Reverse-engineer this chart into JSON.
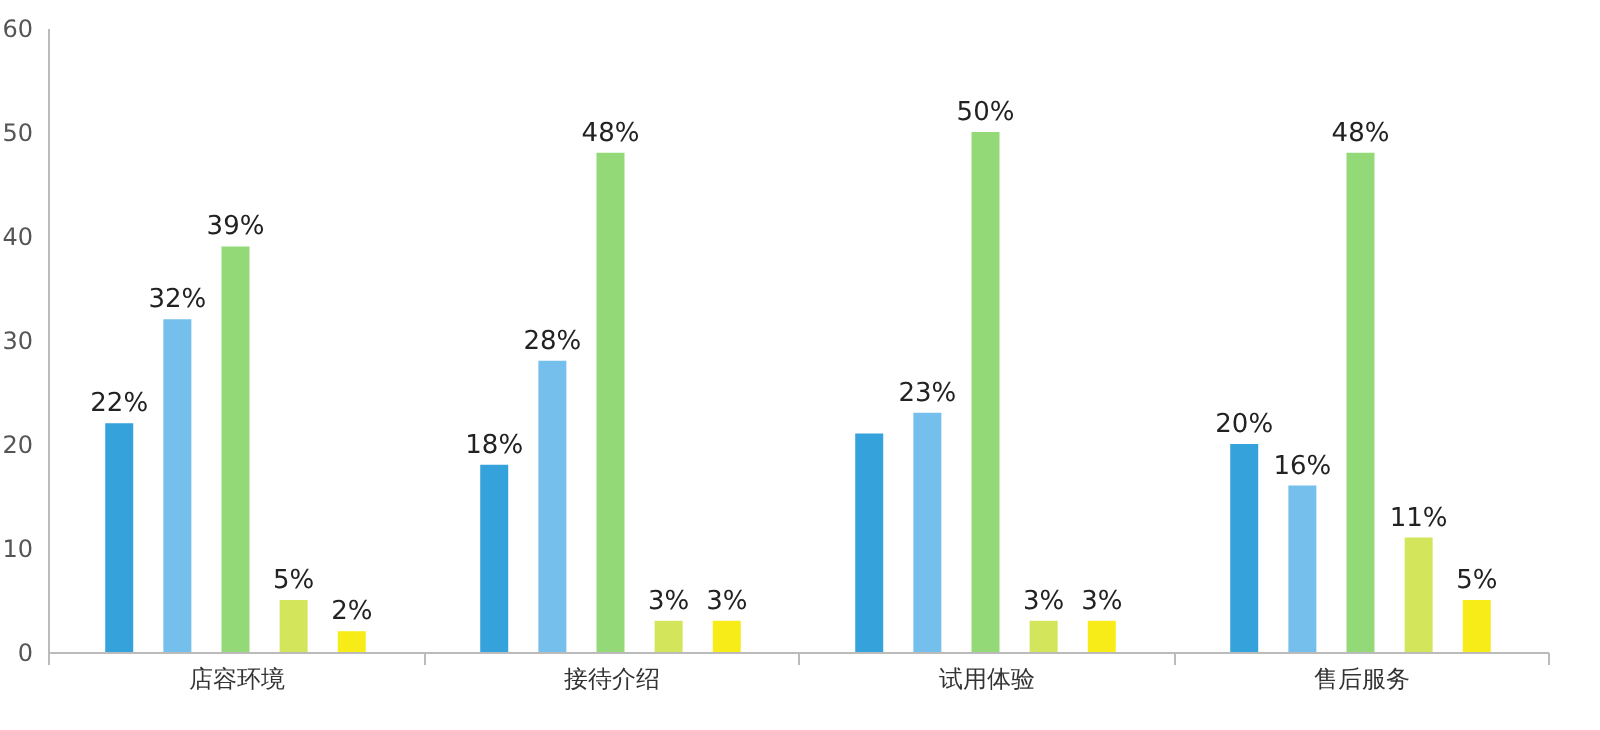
{
  "chart_data": {
    "type": "bar",
    "categories": [
      "店容环境",
      "接待介绍",
      "试用体验",
      "售后服务"
    ],
    "series": [
      {
        "color": "#35a2dc",
        "values": [
          22,
          18,
          21,
          20
        ],
        "value_labels": [
          "22%",
          "18%",
          null,
          "20%"
        ]
      },
      {
        "color": "#74bfeb",
        "values": [
          32,
          28,
          23,
          16
        ],
        "value_labels": [
          "32%",
          "28%",
          "23%",
          "16%"
        ]
      },
      {
        "color": "#93d977",
        "values": [
          39,
          48,
          50,
          48
        ],
        "value_labels": [
          "39%",
          "48%",
          "50%",
          "48%"
        ]
      },
      {
        "color": "#d3e55a",
        "values": [
          5,
          3,
          3,
          11
        ],
        "value_labels": [
          "5%",
          "3%",
          "3%",
          "11%"
        ]
      },
      {
        "color": "#f7ec18",
        "values": [
          2,
          3,
          3,
          5
        ],
        "value_labels": [
          "2%",
          "3%",
          "3%",
          "5%"
        ]
      }
    ],
    "ylim": [
      0,
      60
    ],
    "yticks": [
      0,
      10,
      20,
      30,
      40,
      50,
      60
    ],
    "grid": false,
    "legend": false
  }
}
